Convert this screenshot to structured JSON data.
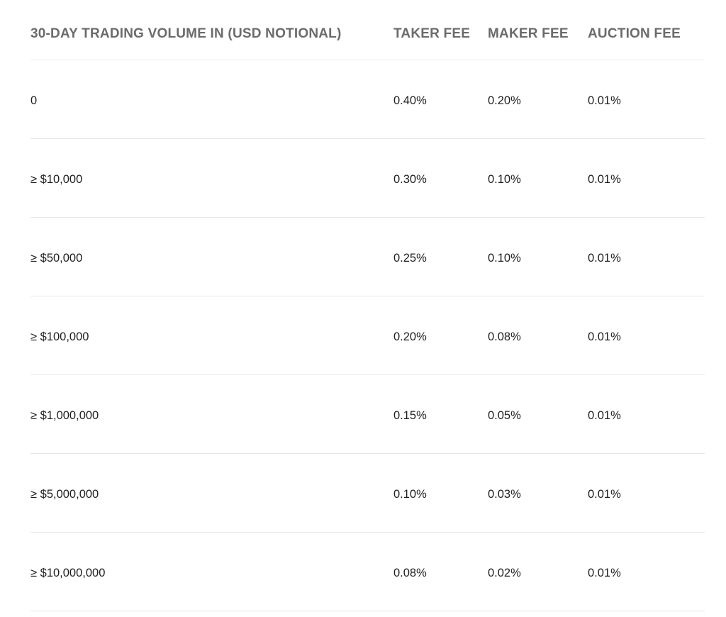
{
  "table": {
    "headers": {
      "volume": "30-DAY TRADING VOLUME IN (USD NOTIONAL)",
      "taker": "TAKER FEE",
      "maker": "MAKER FEE",
      "auction": "AUCTION FEE"
    },
    "rows": [
      {
        "volume": "0",
        "taker": "0.40%",
        "maker": "0.20%",
        "auction": "0.01%"
      },
      {
        "volume": "≥ $10,000",
        "taker": "0.30%",
        "maker": "0.10%",
        "auction": "0.01%"
      },
      {
        "volume": "≥ $50,000",
        "taker": "0.25%",
        "maker": "0.10%",
        "auction": "0.01%"
      },
      {
        "volume": "≥ $100,000",
        "taker": "0.20%",
        "maker": "0.08%",
        "auction": "0.01%"
      },
      {
        "volume": "≥ $1,000,000",
        "taker": "0.15%",
        "maker": "0.05%",
        "auction": "0.01%"
      },
      {
        "volume": "≥ $5,000,000",
        "taker": "0.10%",
        "maker": "0.03%",
        "auction": "0.01%"
      },
      {
        "volume": "≥ $10,000,000",
        "taker": "0.08%",
        "maker": "0.02%",
        "auction": "0.01%"
      }
    ]
  }
}
